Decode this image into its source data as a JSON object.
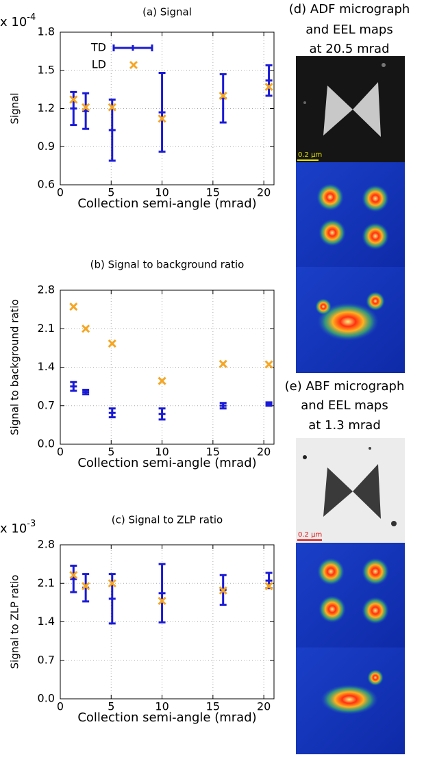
{
  "chart_data": [
    {
      "type": "scatter",
      "title": "(a) Signal",
      "x_label": "Collection semi-angle (mrad)",
      "y_label": "Signal",
      "y_multiplier": {
        "base": "x 10",
        "exponent": "-4"
      },
      "x": [
        1.3,
        2.5,
        5.1,
        10,
        16,
        20.5
      ],
      "series": [
        {
          "name": "TD",
          "color": "#1a1ad6",
          "values": [
            1.2,
            1.18,
            1.03,
            1.17,
            1.28,
            1.42
          ],
          "errors": [
            0.13,
            0.14,
            0.24,
            0.31,
            0.19,
            0.12
          ]
        },
        {
          "name": "LD",
          "color": "#f5a623",
          "values": [
            1.27,
            1.21,
            1.21,
            1.12,
            1.3,
            1.37
          ]
        }
      ],
      "xlim": [
        0,
        21
      ],
      "xticks": [
        0,
        5,
        10,
        15,
        20
      ],
      "ylim": [
        0.6,
        1.8
      ],
      "yticks": [
        0.6,
        0.9,
        1.2,
        1.5,
        1.8
      ],
      "grid": true,
      "legend": "top-left"
    },
    {
      "type": "scatter",
      "title": "(b) Signal to background ratio",
      "x_label": "Collection semi-angle (mrad)",
      "y_label": "Signal to background ratio",
      "x": [
        1.3,
        2.5,
        5.1,
        10,
        16,
        20.5
      ],
      "series": [
        {
          "color": "#1a1ad6",
          "values": [
            1.05,
            0.95,
            0.57,
            0.55,
            0.7,
            0.73
          ],
          "errors": [
            0.08,
            0.04,
            0.08,
            0.1,
            0.05,
            0.03
          ]
        },
        {
          "color": "#f5a623",
          "values": [
            2.5,
            2.1,
            1.83,
            1.15,
            1.46,
            1.45
          ]
        }
      ],
      "xlim": [
        0,
        21
      ],
      "xticks": [
        0,
        5,
        10,
        15,
        20
      ],
      "ylim": [
        0,
        2.8
      ],
      "yticks": [
        {
          "value": 0,
          "label": "0.0"
        },
        0.7,
        1.4,
        2.1,
        2.8
      ],
      "grid": true
    },
    {
      "type": "scatter",
      "title": "(c) Signal to ZLP ratio",
      "x_label": "Collection semi-angle (mrad)",
      "y_label": "Signal to ZLP ratio",
      "y_multiplier": {
        "base": "x 10",
        "exponent": "-3"
      },
      "x": [
        1.3,
        2.5,
        5.1,
        10,
        16,
        20.5
      ],
      "series": [
        {
          "color": "#1a1ad6",
          "values": [
            2.18,
            2.02,
            1.82,
            1.92,
            1.98,
            2.15
          ],
          "errors": [
            0.24,
            0.25,
            0.45,
            0.53,
            0.27,
            0.14
          ]
        },
        {
          "color": "#f5a623",
          "values": [
            2.25,
            2.05,
            2.1,
            1.78,
            1.97,
            2.05
          ]
        }
      ],
      "xlim": [
        0,
        21
      ],
      "xticks": [
        0,
        5,
        10,
        15,
        20
      ],
      "ylim": [
        0,
        2.8
      ],
      "yticks": [
        {
          "value": 0,
          "label": "0.0"
        },
        0.7,
        1.4,
        2.1,
        2.8
      ],
      "grid": true
    }
  ],
  "panels": [
    {
      "title_lines": [
        "(d) ADF micrograph",
        "and EEL maps",
        "at 20.5 mrad"
      ],
      "scale_bar": "0.2 μm"
    },
    {
      "title_lines": [
        "(e) ABF micrograph",
        "and EEL maps",
        "at 1.3 mrad"
      ],
      "scale_bar": "0.2 μm"
    }
  ]
}
